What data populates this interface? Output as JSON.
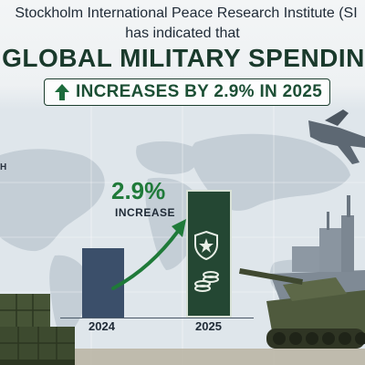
{
  "header": {
    "line1": "Stockholm International Peace Research Institute (SI",
    "line2": "has indicated that",
    "headline": "GLOBAL MILITARY SPENDIN",
    "pill_text": "INCREASES BY 2.9% IN 2025"
  },
  "side_label": "H",
  "colors": {
    "dark_green": "#1c4f35",
    "bright_green": "#1f7a39",
    "bar_2024": "#3b4f6a",
    "bar_2025": "#244733"
  },
  "icons": [
    "arrow-up-icon",
    "shield-star-icon",
    "coin-stack-icon",
    "growth-arrow-icon"
  ],
  "chart_data": {
    "type": "bar",
    "categories": [
      "2024",
      "2025"
    ],
    "values": [
      1.0,
      1.029
    ],
    "annotation_value": "2.9%",
    "annotation_label": "INCREASE"
  }
}
